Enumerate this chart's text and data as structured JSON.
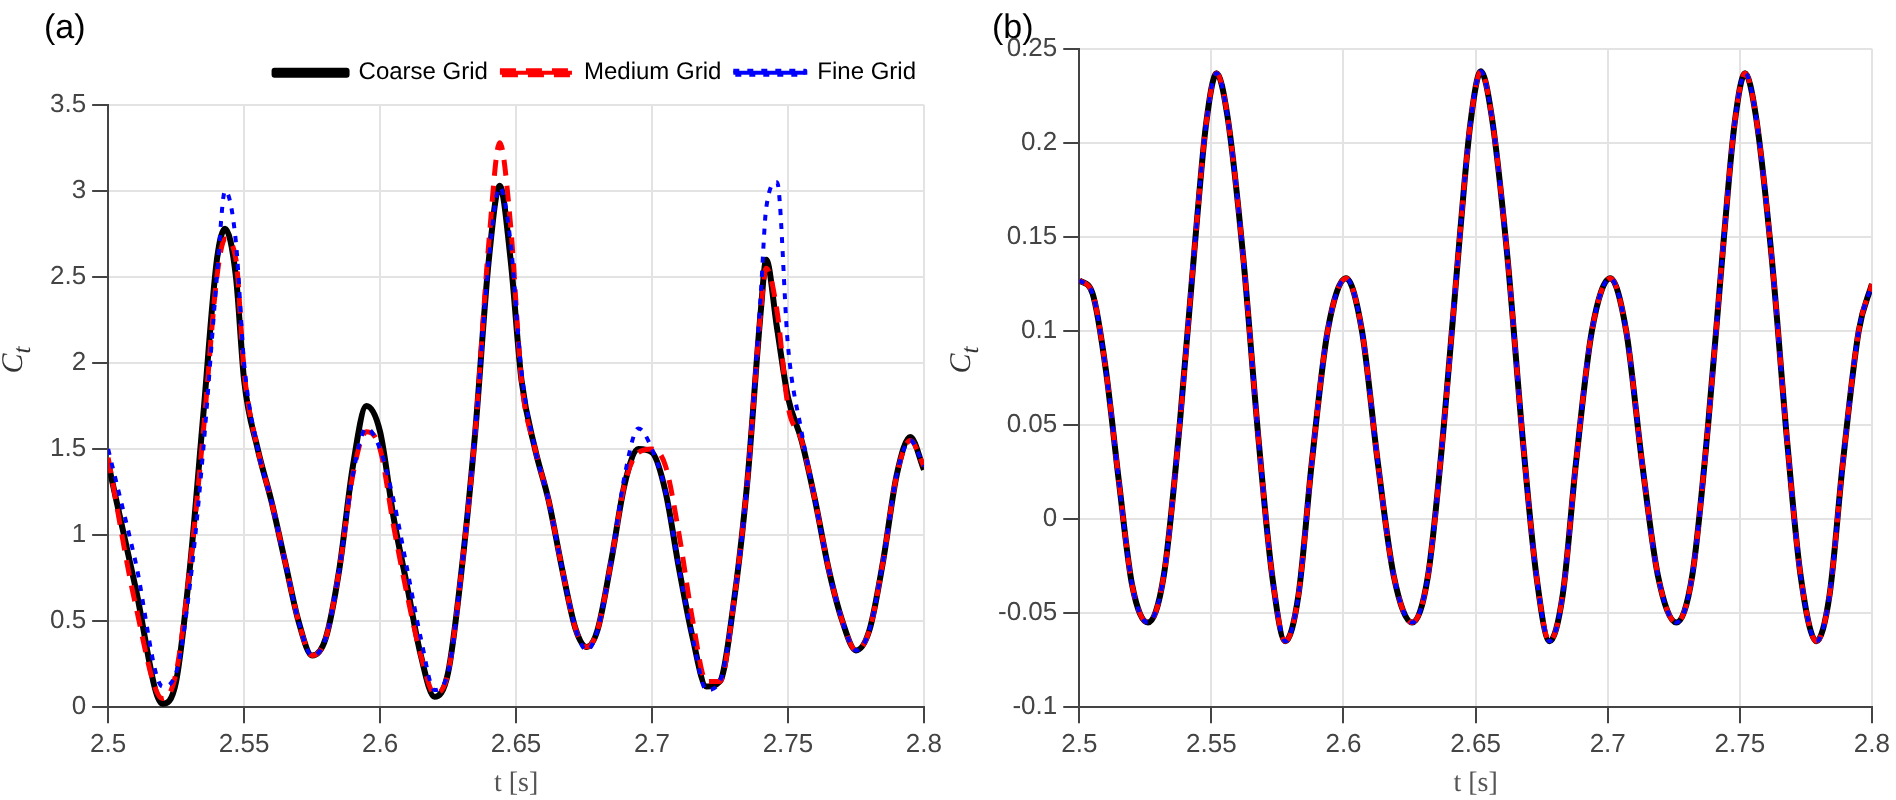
{
  "chart_data": [
    {
      "type": "line",
      "title": "(a)",
      "xlabel": "t [s]",
      "ylabel": "C$_{t}$",
      "xlim": [
        2.5,
        2.8
      ],
      "xticks": [
        2.5,
        2.55,
        2.6,
        2.65,
        2.7,
        2.75,
        2.8
      ],
      "ylim": [
        0,
        3.5
      ],
      "yticks": [
        0,
        0.5,
        1,
        1.5,
        2,
        2.5,
        3,
        3.5
      ],
      "grid": true,
      "legend": "top right",
      "marker": "none",
      "x": [
        2.5,
        2.51,
        2.52,
        2.525,
        2.53,
        2.535,
        2.54,
        2.543,
        2.547,
        2.55,
        2.555,
        2.56,
        2.565,
        2.57,
        2.575,
        2.58,
        2.585,
        2.59,
        2.595,
        2.6,
        2.605,
        2.61,
        2.615,
        2.62,
        2.625,
        2.63,
        2.635,
        2.64,
        2.644,
        2.648,
        2.652,
        2.657,
        2.662,
        2.667,
        2.672,
        2.676,
        2.68,
        2.685,
        2.69,
        2.695,
        2.7,
        2.705,
        2.71,
        2.715,
        2.72,
        2.725,
        2.73,
        2.735,
        2.74,
        2.742,
        2.746,
        2.75,
        2.755,
        2.76,
        2.765,
        2.77,
        2.775,
        2.78,
        2.785,
        2.79,
        2.795,
        2.8
      ],
      "series": [
        {
          "name": "Coarse Grid",
          "color": "#000000",
          "line_style": "solid",
          "values": [
            1.42,
            0.7,
            0.02,
            0.15,
            0.8,
            1.7,
            2.6,
            2.78,
            2.5,
            1.9,
            1.5,
            1.2,
            0.85,
            0.5,
            0.3,
            0.4,
            0.8,
            1.4,
            1.75,
            1.6,
            1.1,
            0.7,
            0.3,
            0.06,
            0.2,
            0.8,
            1.6,
            2.6,
            3.03,
            2.6,
            1.9,
            1.5,
            1.2,
            0.8,
            0.45,
            0.35,
            0.45,
            0.85,
            1.3,
            1.5,
            1.48,
            1.25,
            0.8,
            0.4,
            0.12,
            0.15,
            0.6,
            1.3,
            2.3,
            2.6,
            2.2,
            1.8,
            1.55,
            1.2,
            0.8,
            0.5,
            0.33,
            0.45,
            0.85,
            1.35,
            1.57,
            1.38
          ]
        },
        {
          "name": "Medium Grid",
          "color": "#ff0000",
          "line_style": "dashed",
          "values": [
            1.45,
            0.6,
            0.05,
            0.2,
            0.8,
            1.6,
            2.5,
            2.72,
            2.6,
            1.95,
            1.5,
            1.2,
            0.85,
            0.5,
            0.3,
            0.4,
            0.8,
            1.35,
            1.6,
            1.5,
            1.05,
            0.65,
            0.3,
            0.08,
            0.2,
            0.8,
            1.6,
            2.7,
            3.28,
            2.8,
            1.9,
            1.5,
            1.2,
            0.8,
            0.45,
            0.35,
            0.45,
            0.85,
            1.3,
            1.48,
            1.5,
            1.4,
            1.0,
            0.5,
            0.15,
            0.15,
            0.6,
            1.3,
            2.3,
            2.55,
            2.3,
            1.75,
            1.55,
            1.2,
            0.8,
            0.5,
            0.33,
            0.45,
            0.85,
            1.35,
            1.55,
            1.4
          ]
        },
        {
          "name": "Fine Grid",
          "color": "#0000ff",
          "line_style": "dotted",
          "values": [
            1.5,
            0.85,
            0.12,
            0.2,
            0.7,
            1.5,
            2.5,
            3.0,
            2.7,
            2.0,
            1.5,
            1.2,
            0.85,
            0.5,
            0.3,
            0.4,
            0.8,
            1.35,
            1.62,
            1.5,
            1.2,
            0.8,
            0.4,
            0.1,
            0.2,
            0.8,
            1.6,
            2.6,
            3.02,
            2.7,
            1.95,
            1.5,
            1.2,
            0.8,
            0.45,
            0.33,
            0.45,
            0.85,
            1.35,
            1.62,
            1.5,
            1.25,
            0.8,
            0.4,
            0.1,
            0.15,
            0.6,
            1.3,
            2.4,
            2.9,
            3.05,
            2.1,
            1.6,
            1.2,
            0.8,
            0.5,
            0.33,
            0.45,
            0.85,
            1.35,
            1.55,
            1.4
          ]
        }
      ]
    },
    {
      "type": "line",
      "title": "(b)",
      "xlabel": "t [s]",
      "ylabel": "C$_{t}$",
      "xlim": [
        2.5,
        2.8
      ],
      "xticks": [
        2.5,
        2.55,
        2.6,
        2.65,
        2.7,
        2.75,
        2.8
      ],
      "ylim": [
        -0.1,
        0.25
      ],
      "yticks": [
        -0.1,
        -0.05,
        0,
        0.05,
        0.1,
        0.15,
        0.2,
        0.25
      ],
      "grid": true,
      "marker": "none",
      "x": [
        2.5,
        2.505,
        2.51,
        2.515,
        2.52,
        2.526,
        2.532,
        2.538,
        2.544,
        2.548,
        2.552,
        2.556,
        2.562,
        2.568,
        2.573,
        2.578,
        2.583,
        2.588,
        2.594,
        2.601,
        2.607,
        2.613,
        2.619,
        2.626,
        2.632,
        2.638,
        2.644,
        2.648,
        2.652,
        2.656,
        2.662,
        2.668,
        2.673,
        2.678,
        2.683,
        2.688,
        2.694,
        2.701,
        2.707,
        2.713,
        2.719,
        2.726,
        2.732,
        2.738,
        2.744,
        2.748,
        2.752,
        2.756,
        2.762,
        2.768,
        2.773,
        2.779,
        2.784,
        2.789,
        2.795,
        2.8
      ],
      "series": [
        {
          "color": "#000000",
          "line_style": "solid",
          "values": [
            0.127,
            0.12,
            0.08,
            0.02,
            -0.035,
            -0.055,
            -0.03,
            0.05,
            0.15,
            0.21,
            0.237,
            0.215,
            0.14,
            0.04,
            -0.03,
            -0.065,
            -0.04,
            0.03,
            0.1,
            0.128,
            0.1,
            0.03,
            -0.03,
            -0.055,
            -0.03,
            0.05,
            0.15,
            0.21,
            0.238,
            0.215,
            0.14,
            0.04,
            -0.03,
            -0.065,
            -0.04,
            0.03,
            0.1,
            0.128,
            0.1,
            0.03,
            -0.03,
            -0.055,
            -0.03,
            0.05,
            0.15,
            0.21,
            0.237,
            0.215,
            0.14,
            0.04,
            -0.03,
            -0.065,
            -0.04,
            0.03,
            0.1,
            0.125
          ]
        },
        {
          "color": "#ff0000",
          "line_style": "dashed",
          "values": [
            0.127,
            0.12,
            0.08,
            0.02,
            -0.035,
            -0.055,
            -0.03,
            0.05,
            0.15,
            0.21,
            0.237,
            0.215,
            0.14,
            0.04,
            -0.03,
            -0.065,
            -0.04,
            0.03,
            0.1,
            0.128,
            0.1,
            0.03,
            -0.03,
            -0.055,
            -0.03,
            0.05,
            0.15,
            0.21,
            0.238,
            0.215,
            0.14,
            0.04,
            -0.03,
            -0.065,
            -0.04,
            0.03,
            0.1,
            0.128,
            0.1,
            0.03,
            -0.03,
            -0.055,
            -0.03,
            0.05,
            0.15,
            0.21,
            0.237,
            0.215,
            0.14,
            0.04,
            -0.03,
            -0.065,
            -0.04,
            0.03,
            0.1,
            0.125
          ]
        },
        {
          "color": "#0000ff",
          "line_style": "dotted",
          "values": [
            0.127,
            0.12,
            0.08,
            0.02,
            -0.035,
            -0.055,
            -0.03,
            0.05,
            0.15,
            0.21,
            0.237,
            0.215,
            0.14,
            0.04,
            -0.03,
            -0.065,
            -0.04,
            0.03,
            0.1,
            0.128,
            0.1,
            0.03,
            -0.03,
            -0.055,
            -0.03,
            0.05,
            0.15,
            0.21,
            0.238,
            0.215,
            0.14,
            0.04,
            -0.03,
            -0.065,
            -0.04,
            0.03,
            0.1,
            0.128,
            0.1,
            0.03,
            -0.03,
            -0.055,
            -0.03,
            0.05,
            0.15,
            0.21,
            0.237,
            0.215,
            0.14,
            0.04,
            -0.03,
            -0.065,
            -0.04,
            0.03,
            0.1,
            0.125
          ]
        }
      ]
    }
  ]
}
